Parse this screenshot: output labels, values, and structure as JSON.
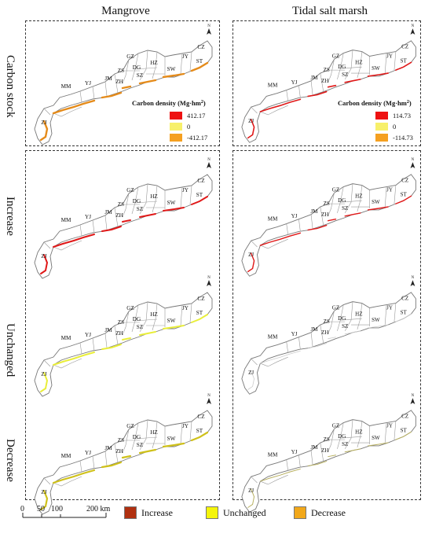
{
  "columns": [
    "Mangrove",
    "Tidal salt marsh"
  ],
  "rows": [
    "Carbon stock",
    "Increase",
    "Unchanged",
    "Decrease"
  ],
  "city_labels": [
    "GZ",
    "HZ",
    "JY",
    "CZ",
    "DG",
    "ST",
    "SZ",
    "SW",
    "ZS",
    "JM",
    "ZH",
    "YJ",
    "MM",
    "ZJ"
  ],
  "north_label": "N",
  "density_legend": {
    "title": "Carbon density (Mg·hm",
    "title_sup": "2",
    "title_close": ")",
    "mangrove": [
      "412.17",
      "0",
      "-412.17"
    ],
    "saltmarsh": [
      "114.73",
      "0",
      "-114.73"
    ],
    "colors": [
      "#ee1111",
      "#f7f06a",
      "#f5a020"
    ]
  },
  "scale_bar": {
    "ticks": [
      "0",
      "50",
      "100",
      "200 km"
    ]
  },
  "change_legend": [
    {
      "label": "Increase",
      "color": "#b03010"
    },
    {
      "label": "Unchanged",
      "color": "#f5f50a"
    },
    {
      "label": "Decrease",
      "color": "#f2a81a"
    }
  ],
  "panel_highlights": {
    "carbon_mangrove": "#e58b1a",
    "carbon_saltmarsh": "#e01818",
    "increase_mangrove": "#e01818",
    "increase_saltmarsh": "#e01818",
    "unchanged_mangrove": "#e9ee3a",
    "unchanged_saltmarsh": "#cccccc",
    "decrease_mangrove": "#cfc11a",
    "decrease_saltmarsh": "#b8b060"
  }
}
